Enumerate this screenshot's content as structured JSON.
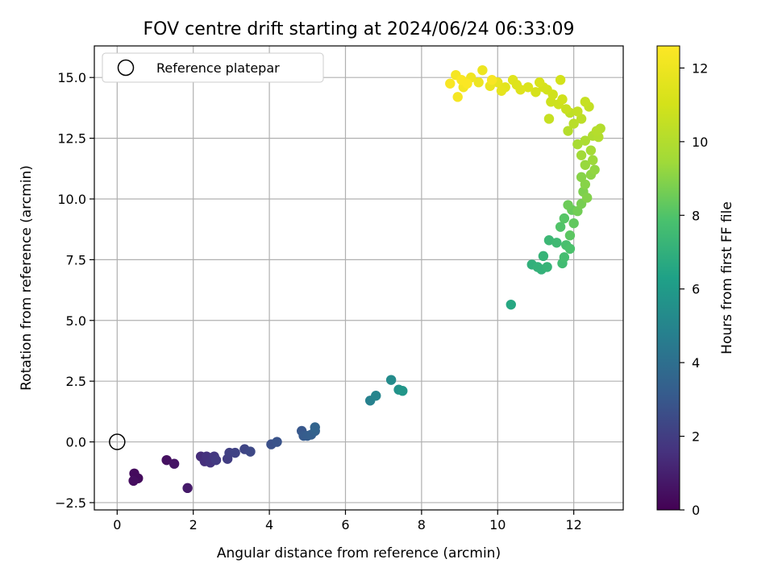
{
  "chart_data": {
    "type": "scatter",
    "title": "FOV centre drift starting at 2024/06/24 06:33:09",
    "xlabel": "Angular distance from reference (arcmin)",
    "ylabel": "Rotation from reference (arcmin)",
    "xlim": [
      -0.6,
      13.3
    ],
    "ylim": [
      -2.8,
      16.3
    ],
    "x_ticks": [
      0,
      2,
      4,
      6,
      8,
      10,
      12
    ],
    "y_ticks": [
      -2.5,
      0.0,
      2.5,
      5.0,
      7.5,
      10.0,
      12.5,
      15.0
    ],
    "x_tick_labels": [
      "0",
      "2",
      "4",
      "6",
      "8",
      "10",
      "12"
    ],
    "y_tick_labels": [
      "−2.5",
      "0.0",
      "2.5",
      "5.0",
      "7.5",
      "10.0",
      "12.5",
      "15.0"
    ],
    "grid": true,
    "legend": {
      "placement": "top-left",
      "label": "Reference platepar"
    },
    "reference_point": {
      "x": 0,
      "y": 0
    },
    "colorbar": {
      "label": "Hours from first FF file",
      "range": [
        0,
        12.6
      ],
      "ticks": [
        0,
        2,
        4,
        6,
        8,
        10,
        12
      ],
      "tick_labels": [
        "0",
        "2",
        "4",
        "6",
        "8",
        "10",
        "12"
      ],
      "colormap": "viridis"
    },
    "points": [
      {
        "x": 0.45,
        "y": -1.3,
        "c": 0.3
      },
      {
        "x": 0.55,
        "y": -1.5,
        "c": 0.3
      },
      {
        "x": 0.43,
        "y": -1.6,
        "c": 0.4
      },
      {
        "x": 1.3,
        "y": -0.75,
        "c": 0.5
      },
      {
        "x": 1.5,
        "y": -0.9,
        "c": 0.6
      },
      {
        "x": 1.85,
        "y": -1.9,
        "c": 0.8
      },
      {
        "x": 2.2,
        "y": -0.6,
        "c": 1.4
      },
      {
        "x": 2.3,
        "y": -0.8,
        "c": 1.5
      },
      {
        "x": 2.35,
        "y": -0.6,
        "c": 1.6
      },
      {
        "x": 2.45,
        "y": -0.85,
        "c": 1.7
      },
      {
        "x": 2.55,
        "y": -0.6,
        "c": 1.8
      },
      {
        "x": 2.6,
        "y": -0.75,
        "c": 1.9
      },
      {
        "x": 2.9,
        "y": -0.7,
        "c": 2.0
      },
      {
        "x": 2.95,
        "y": -0.45,
        "c": 2.1
      },
      {
        "x": 3.1,
        "y": -0.45,
        "c": 2.2
      },
      {
        "x": 3.35,
        "y": -0.3,
        "c": 2.3
      },
      {
        "x": 3.5,
        "y": -0.4,
        "c": 2.4
      },
      {
        "x": 4.05,
        "y": -0.1,
        "c": 2.7
      },
      {
        "x": 4.2,
        "y": 0.0,
        "c": 2.8
      },
      {
        "x": 4.85,
        "y": 0.45,
        "c": 3.0
      },
      {
        "x": 4.9,
        "y": 0.25,
        "c": 3.1
      },
      {
        "x": 5.0,
        "y": 0.25,
        "c": 3.2
      },
      {
        "x": 5.1,
        "y": 0.3,
        "c": 3.3
      },
      {
        "x": 5.2,
        "y": 0.45,
        "c": 3.4
      },
      {
        "x": 5.2,
        "y": 0.6,
        "c": 3.5
      },
      {
        "x": 6.65,
        "y": 1.7,
        "c": 4.8
      },
      {
        "x": 6.8,
        "y": 1.9,
        "c": 5.0
      },
      {
        "x": 7.2,
        "y": 2.55,
        "c": 5.3
      },
      {
        "x": 7.4,
        "y": 2.15,
        "c": 5.6
      },
      {
        "x": 7.5,
        "y": 2.1,
        "c": 5.8
      },
      {
        "x": 10.35,
        "y": 5.65,
        "c": 6.6
      },
      {
        "x": 10.9,
        "y": 7.3,
        "c": 7.0
      },
      {
        "x": 11.05,
        "y": 7.2,
        "c": 7.1
      },
      {
        "x": 11.15,
        "y": 7.1,
        "c": 7.1
      },
      {
        "x": 11.2,
        "y": 7.65,
        "c": 7.2
      },
      {
        "x": 11.3,
        "y": 7.2,
        "c": 7.2
      },
      {
        "x": 11.35,
        "y": 8.3,
        "c": 7.4
      },
      {
        "x": 11.55,
        "y": 8.2,
        "c": 7.5
      },
      {
        "x": 11.7,
        "y": 7.35,
        "c": 7.6
      },
      {
        "x": 11.75,
        "y": 7.6,
        "c": 7.7
      },
      {
        "x": 11.8,
        "y": 8.1,
        "c": 7.8
      },
      {
        "x": 11.9,
        "y": 7.95,
        "c": 7.9
      },
      {
        "x": 11.65,
        "y": 8.85,
        "c": 8.0
      },
      {
        "x": 11.75,
        "y": 9.2,
        "c": 8.1
      },
      {
        "x": 11.9,
        "y": 8.5,
        "c": 8.2
      },
      {
        "x": 12.0,
        "y": 9.0,
        "c": 8.3
      },
      {
        "x": 11.95,
        "y": 9.55,
        "c": 8.4
      },
      {
        "x": 11.85,
        "y": 9.75,
        "c": 8.5
      },
      {
        "x": 12.1,
        "y": 9.5,
        "c": 8.6
      },
      {
        "x": 12.2,
        "y": 9.8,
        "c": 8.7
      },
      {
        "x": 12.25,
        "y": 10.3,
        "c": 8.8
      },
      {
        "x": 12.35,
        "y": 10.05,
        "c": 8.9
      },
      {
        "x": 12.3,
        "y": 10.6,
        "c": 9.0
      },
      {
        "x": 12.2,
        "y": 10.9,
        "c": 9.0
      },
      {
        "x": 12.45,
        "y": 11.0,
        "c": 9.1
      },
      {
        "x": 12.55,
        "y": 11.2,
        "c": 9.2
      },
      {
        "x": 12.3,
        "y": 11.4,
        "c": 9.3
      },
      {
        "x": 12.5,
        "y": 11.6,
        "c": 9.4
      },
      {
        "x": 12.2,
        "y": 11.8,
        "c": 9.5
      },
      {
        "x": 12.45,
        "y": 12.0,
        "c": 9.6
      },
      {
        "x": 12.1,
        "y": 12.25,
        "c": 9.7
      },
      {
        "x": 12.3,
        "y": 12.4,
        "c": 9.8
      },
      {
        "x": 12.5,
        "y": 12.6,
        "c": 9.9
      },
      {
        "x": 12.65,
        "y": 12.55,
        "c": 10.0
      },
      {
        "x": 12.7,
        "y": 12.9,
        "c": 10.0
      },
      {
        "x": 12.6,
        "y": 12.8,
        "c": 10.1
      },
      {
        "x": 11.85,
        "y": 12.8,
        "c": 10.1
      },
      {
        "x": 12.0,
        "y": 13.1,
        "c": 10.2
      },
      {
        "x": 12.2,
        "y": 13.3,
        "c": 10.3
      },
      {
        "x": 11.9,
        "y": 13.55,
        "c": 10.4
      },
      {
        "x": 12.1,
        "y": 13.6,
        "c": 10.5
      },
      {
        "x": 12.4,
        "y": 13.8,
        "c": 10.5
      },
      {
        "x": 12.3,
        "y": 14.0,
        "c": 10.6
      },
      {
        "x": 11.35,
        "y": 13.3,
        "c": 10.6
      },
      {
        "x": 11.8,
        "y": 13.7,
        "c": 10.7
      },
      {
        "x": 11.6,
        "y": 13.9,
        "c": 10.8
      },
      {
        "x": 11.4,
        "y": 14.0,
        "c": 10.8
      },
      {
        "x": 11.45,
        "y": 14.3,
        "c": 10.9
      },
      {
        "x": 11.7,
        "y": 14.1,
        "c": 10.9
      },
      {
        "x": 11.3,
        "y": 14.5,
        "c": 11.0
      },
      {
        "x": 11.65,
        "y": 14.9,
        "c": 11.0
      },
      {
        "x": 11.2,
        "y": 14.6,
        "c": 11.1
      },
      {
        "x": 11.0,
        "y": 14.4,
        "c": 11.1
      },
      {
        "x": 11.1,
        "y": 14.8,
        "c": 11.2
      },
      {
        "x": 10.8,
        "y": 14.6,
        "c": 11.3
      },
      {
        "x": 10.6,
        "y": 14.5,
        "c": 11.4
      },
      {
        "x": 10.4,
        "y": 14.9,
        "c": 11.5
      },
      {
        "x": 10.2,
        "y": 14.6,
        "c": 11.6
      },
      {
        "x": 10.1,
        "y": 14.45,
        "c": 11.7
      },
      {
        "x": 10.0,
        "y": 14.8,
        "c": 11.8
      },
      {
        "x": 9.8,
        "y": 14.65,
        "c": 11.9
      },
      {
        "x": 9.6,
        "y": 15.3,
        "c": 12.0
      },
      {
        "x": 9.5,
        "y": 14.8,
        "c": 12.0
      },
      {
        "x": 9.3,
        "y": 15.0,
        "c": 12.1
      },
      {
        "x": 9.1,
        "y": 14.6,
        "c": 12.2
      },
      {
        "x": 8.95,
        "y": 14.2,
        "c": 12.3
      },
      {
        "x": 8.9,
        "y": 15.1,
        "c": 12.3
      },
      {
        "x": 8.75,
        "y": 14.75,
        "c": 12.4
      },
      {
        "x": 9.05,
        "y": 14.9,
        "c": 12.5
      },
      {
        "x": 9.2,
        "y": 14.75,
        "c": 12.5
      },
      {
        "x": 9.85,
        "y": 14.9,
        "c": 12.4
      },
      {
        "x": 10.5,
        "y": 14.7,
        "c": 11.4
      }
    ]
  }
}
